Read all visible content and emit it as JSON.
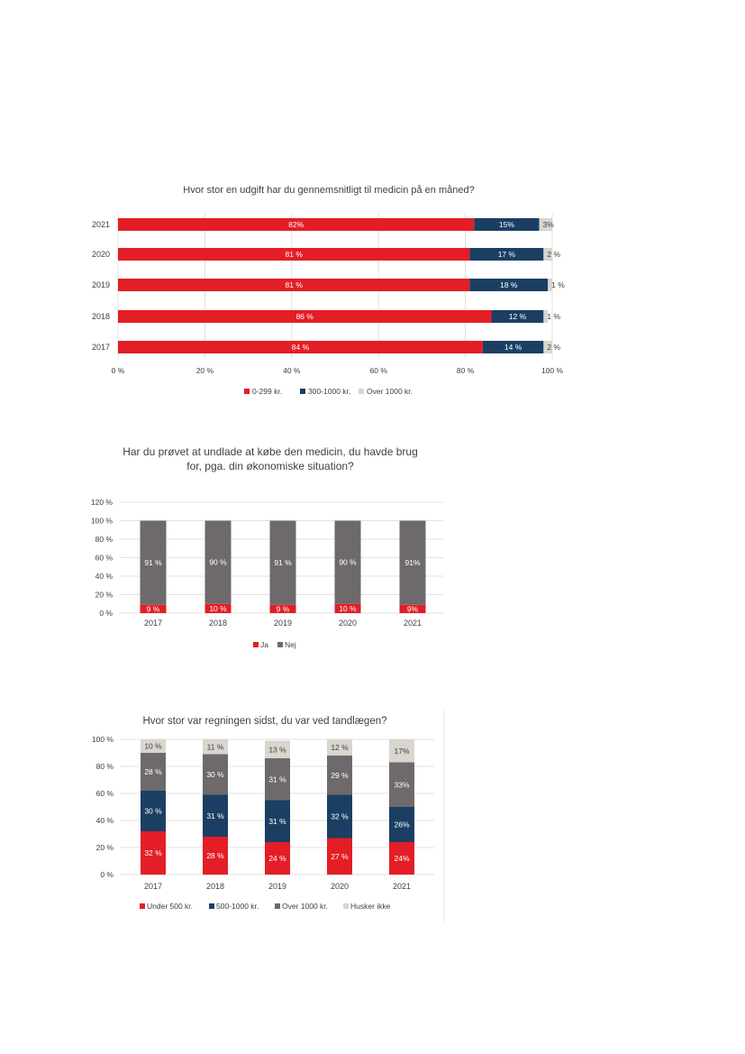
{
  "colors": {
    "red": "#e31e26",
    "navy": "#1b3f63",
    "gray": "#6e6a6b",
    "light": "#d8d6cd"
  },
  "chart_data": [
    {
      "type": "bar",
      "orientation": "horizontal",
      "stacked": true,
      "title": "Hvor stor en udgift har du gennemsnitligt til medicin på en måned?",
      "categories": [
        "2021",
        "2020",
        "2019",
        "2018",
        "2017"
      ],
      "series": [
        {
          "name": "0-299 kr.",
          "color": "red",
          "values": [
            82,
            81,
            81,
            86,
            84
          ],
          "labels": [
            "82%",
            "81 %",
            "81 %",
            "86 %",
            "84 %"
          ]
        },
        {
          "name": "300-1000 kr.",
          "color": "navy",
          "values": [
            15,
            17,
            18,
            12,
            14
          ],
          "labels": [
            "15%",
            "17 %",
            "18 %",
            "12 %",
            "14 %"
          ]
        },
        {
          "name": "Over 1000 kr.",
          "color": "light",
          "values": [
            3,
            2,
            1,
            1,
            2
          ],
          "labels": [
            "3%",
            "2 %",
            "1 %",
            "1 %",
            "2 %"
          ]
        }
      ],
      "xticks": [
        "0 %",
        "20 %",
        "40 %",
        "60 %",
        "80 %",
        "100 %"
      ],
      "xlim": [
        0,
        100
      ],
      "grid": true,
      "legend_position": "bottom"
    },
    {
      "type": "bar",
      "orientation": "vertical",
      "stacked": true,
      "title_lines": [
        "Har du prøvet at undlade at købe den medicin, du havde brug",
        "for, pga. din økonomiske situation?"
      ],
      "categories": [
        "2017",
        "2018",
        "2019",
        "2020",
        "2021"
      ],
      "series": [
        {
          "name": "Ja",
          "color": "red",
          "values": [
            9,
            10,
            9,
            10,
            9
          ],
          "labels": [
            "9 %",
            "10 %",
            "9 %",
            "10 %",
            "9%"
          ]
        },
        {
          "name": "Nej",
          "color": "gray",
          "values": [
            91,
            90,
            91,
            90,
            91
          ],
          "labels": [
            "91 %",
            "90 %",
            "91 %",
            "90 %",
            "91%"
          ]
        }
      ],
      "yticks": [
        "0 %",
        "20 %",
        "40 %",
        "60 %",
        "80 %",
        "100 %",
        "120 %"
      ],
      "ylim": [
        0,
        120
      ],
      "grid": true,
      "legend_position": "bottom"
    },
    {
      "type": "bar",
      "orientation": "vertical",
      "stacked": true,
      "title": "Hvor stor var regningen sidst, du var ved tandlægen?",
      "categories": [
        "2017",
        "2018",
        "2019",
        "2020",
        "2021"
      ],
      "series": [
        {
          "name": "Under 500 kr.",
          "color": "red",
          "values": [
            32,
            28,
            24,
            27,
            24
          ],
          "labels": [
            "32 %",
            "28 %",
            "24 %",
            "27 %",
            "24%"
          ]
        },
        {
          "name": "500-1000 kr.",
          "color": "navy",
          "values": [
            30,
            31,
            31,
            32,
            26
          ],
          "labels": [
            "30 %",
            "31 %",
            "31 %",
            "32 %",
            "26%"
          ]
        },
        {
          "name": "Over 1000 kr.",
          "color": "gray",
          "values": [
            28,
            30,
            31,
            29,
            33
          ],
          "labels": [
            "28 %",
            "30 %",
            "31 %",
            "29 %",
            "33%"
          ]
        },
        {
          "name": "Husker ikke",
          "color": "light",
          "values": [
            10,
            11,
            13,
            12,
            17
          ],
          "labels": [
            "10 %",
            "11 %",
            "13 %",
            "12 %",
            "17%"
          ]
        }
      ],
      "yticks": [
        "0 %",
        "20 %",
        "40 %",
        "60 %",
        "80 %",
        "100 %"
      ],
      "ylim": [
        0,
        100
      ],
      "grid": true,
      "legend_position": "bottom"
    }
  ]
}
